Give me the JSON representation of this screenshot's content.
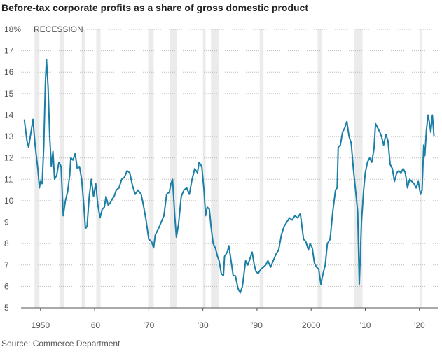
{
  "chart_data": {
    "type": "line",
    "title": "Before-tax corporate profits as a share of gross domestic product",
    "annotation": "RECESSION",
    "source": "Source: Commerce Department",
    "xlim": [
      1946.4,
      2023.4
    ],
    "ylim": [
      5,
      18
    ],
    "xticks": [
      1950,
      {
        "value": 1960,
        "label": "’60"
      },
      {
        "value": 1970,
        "label": "’70"
      },
      {
        "value": 1980,
        "label": "’80"
      },
      {
        "value": 1990,
        "label": "’90"
      },
      2000,
      {
        "value": 2010,
        "label": "’10"
      },
      {
        "value": 2020,
        "label": "’20"
      }
    ],
    "yticks": [
      5,
      6,
      7,
      8,
      9,
      10,
      11,
      12,
      13,
      14,
      15,
      16,
      17,
      {
        "value": 18,
        "label": "18%"
      }
    ],
    "grid": true,
    "recession_color": "#ebebeb",
    "recessions": [
      [
        1948.9,
        1949.8
      ],
      [
        1953.5,
        1954.4
      ],
      [
        1957.6,
        1958.3
      ],
      [
        1960.3,
        1961.1
      ],
      [
        1969.9,
        1970.9
      ],
      [
        1973.9,
        1975.2
      ],
      [
        1980.0,
        1980.5
      ],
      [
        1981.5,
        1982.9
      ],
      [
        1990.5,
        1991.2
      ],
      [
        2001.2,
        2001.9
      ],
      [
        2007.9,
        2009.5
      ],
      [
        2020.1,
        2020.4
      ]
    ],
    "series": [
      {
        "color": "#1a7ea6",
        "x": [
          1947.0,
          1947.5,
          1947.8,
          1948.3,
          1948.6,
          1949.0,
          1949.5,
          1949.8,
          1950.0,
          1950.3,
          1950.6,
          1950.9,
          1951.1,
          1951.4,
          1951.7,
          1952.0,
          1952.3,
          1952.6,
          1953.0,
          1953.4,
          1953.8,
          1954.2,
          1954.6,
          1955.0,
          1955.4,
          1955.6,
          1956.0,
          1956.4,
          1956.8,
          1957.2,
          1957.6,
          1958.0,
          1958.3,
          1958.6,
          1959.0,
          1959.4,
          1959.8,
          1960.2,
          1960.6,
          1961.0,
          1961.4,
          1961.8,
          1962.1,
          1962.5,
          1962.9,
          1963.3,
          1963.6,
          1964.0,
          1964.5,
          1965.0,
          1965.5,
          1966.0,
          1966.5,
          1967.0,
          1967.5,
          1968.0,
          1968.6,
          1969.0,
          1969.5,
          1970.0,
          1970.5,
          1970.9,
          1971.2,
          1971.8,
          1972.3,
          1972.8,
          1973.3,
          1973.8,
          1974.1,
          1974.4,
          1974.8,
          1975.1,
          1975.5,
          1976.0,
          1976.5,
          1977.0,
          1977.5,
          1978.0,
          1978.5,
          1979.0,
          1979.3,
          1979.8,
          1980.2,
          1980.5,
          1980.8,
          1981.2,
          1981.5,
          1981.9,
          1982.3,
          1982.7,
          1983.0,
          1983.4,
          1983.8,
          1984.0,
          1984.5,
          1984.8,
          1985.2,
          1985.6,
          1986.0,
          1986.5,
          1986.9,
          1987.3,
          1987.6,
          1987.9,
          1988.3,
          1988.7,
          1989.1,
          1989.5,
          1989.8,
          1990.2,
          1990.7,
          1991.2,
          1991.6,
          1992.0,
          1992.5,
          1993.0,
          1993.5,
          1994.0,
          1994.5,
          1995.0,
          1995.5,
          1996.0,
          1996.5,
          1997.0,
          1997.5,
          1998.0,
          1998.3,
          1998.6,
          1999.0,
          1999.5,
          1999.8,
          2000.2,
          2000.6,
          2001.0,
          2001.4,
          2001.8,
          2002.2,
          2002.6,
          2003.0,
          2003.5,
          2004.0,
          2004.5,
          2004.8,
          2005.0,
          2005.4,
          2005.8,
          2006.2,
          2006.6,
          2007.0,
          2007.4,
          2007.8,
          2008.2,
          2008.6,
          2008.9,
          2009.3,
          2009.7,
          2010.0,
          2010.4,
          2010.8,
          2011.2,
          2011.6,
          2011.9,
          2012.3,
          2012.7,
          2013.0,
          2013.4,
          2013.8,
          2014.2,
          2014.6,
          2015.0,
          2015.4,
          2015.8,
          2016.2,
          2016.6,
          2017.0,
          2017.4,
          2017.8,
          2018.2,
          2018.6,
          2019.0,
          2019.4,
          2019.8,
          2020.2,
          2020.5,
          2020.8,
          2021.0,
          2021.3,
          2021.6,
          2021.9,
          2022.1,
          2022.4,
          2022.7
        ],
        "values": [
          13.8,
          12.8,
          12.5,
          13.3,
          13.8,
          12.6,
          11.5,
          10.6,
          10.9,
          10.8,
          12.5,
          15.5,
          16.6,
          15.3,
          13.0,
          11.6,
          12.3,
          11.0,
          11.2,
          11.8,
          11.6,
          9.3,
          10.0,
          10.4,
          11.2,
          12.0,
          11.9,
          12.2,
          11.5,
          11.6,
          11.0,
          9.8,
          8.7,
          8.8,
          10.2,
          11.0,
          10.2,
          10.8,
          9.8,
          9.2,
          9.6,
          9.7,
          10.2,
          9.8,
          9.9,
          10.1,
          10.2,
          10.5,
          10.6,
          11.0,
          11.1,
          11.4,
          11.3,
          10.7,
          10.3,
          10.5,
          10.3,
          9.8,
          9.1,
          8.2,
          8.1,
          7.8,
          8.4,
          8.7,
          9.0,
          9.3,
          10.3,
          10.4,
          10.8,
          11.0,
          9.3,
          8.3,
          8.9,
          10.2,
          10.5,
          10.6,
          10.3,
          11.0,
          11.5,
          11.3,
          11.8,
          11.6,
          10.5,
          9.3,
          9.7,
          9.6,
          8.8,
          8.0,
          7.8,
          7.4,
          7.2,
          6.6,
          6.5,
          7.4,
          7.6,
          7.9,
          7.2,
          6.5,
          6.5,
          5.9,
          5.7,
          6.0,
          6.6,
          7.2,
          7.0,
          7.3,
          7.6,
          7.0,
          6.7,
          6.6,
          6.8,
          6.9,
          7.0,
          7.2,
          6.9,
          7.2,
          7.5,
          7.7,
          8.4,
          8.8,
          9.0,
          9.2,
          9.1,
          9.3,
          9.2,
          9.4,
          8.8,
          8.2,
          8.1,
          7.7,
          8.0,
          7.8,
          7.1,
          6.9,
          6.8,
          6.1,
          6.6,
          7.0,
          8.0,
          8.2,
          9.5,
          10.5,
          10.6,
          12.5,
          12.6,
          13.2,
          13.4,
          13.7,
          13.0,
          12.7,
          11.5,
          10.5,
          9.5,
          6.1,
          9.0,
          10.5,
          11.3,
          11.8,
          12.0,
          11.8,
          12.4,
          13.6,
          13.4,
          13.2,
          13.0,
          12.6,
          13.1,
          12.8,
          11.7,
          11.5,
          10.9,
          11.3,
          11.4,
          11.3,
          11.5,
          11.3,
          10.6,
          11.0,
          10.9,
          10.8,
          10.6,
          10.9,
          10.3,
          10.5,
          12.6,
          12.1,
          13.3,
          14.0,
          13.6,
          13.2,
          14.0,
          13.0
        ]
      }
    ]
  }
}
